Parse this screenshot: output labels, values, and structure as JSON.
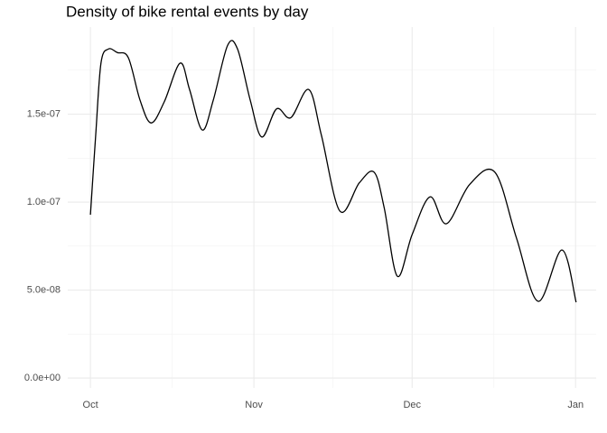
{
  "chart_data": {
    "type": "line",
    "title": "Density of bike rental events by day",
    "x": [
      0,
      1,
      2,
      3.4,
      5.1,
      7.2,
      9.4,
      11.5,
      14,
      17,
      18.8,
      21.2,
      23.3,
      26,
      27.9,
      30.3,
      32.5,
      35.3,
      38,
      41.4,
      43.8,
      47.3,
      51,
      53.8,
      55.7,
      58.2,
      61,
      64.4,
      67.5,
      71.9,
      76.7,
      80.8,
      84.9,
      89.4,
      92.1
    ],
    "series": [
      {
        "color": "#000000",
        "values": [
          9.28e-08,
          1.38e-07,
          1.79e-07,
          1.87e-07,
          1.85e-07,
          1.82e-07,
          1.58e-07,
          1.45e-07,
          1.57e-07,
          1.79e-07,
          1.64e-07,
          1.41e-07,
          1.58e-07,
          1.89e-07,
          1.87e-07,
          1.58e-07,
          1.37e-07,
          1.53e-07,
          1.48e-07,
          1.64e-07,
          1.38e-07,
          9.49e-08,
          1.11e-07,
          1.17e-07,
          9.69e-08,
          5.79e-08,
          8.15e-08,
          1.03e-07,
          8.77e-08,
          1.1e-07,
          1.17e-07,
          7.95e-08,
          4.36e-08,
          7.28e-08,
          4.31e-08
        ]
      }
    ],
    "xlim": [
      -4.3,
      95.9
    ],
    "ylim": [
      -5.6e-09,
      1.995e-07
    ],
    "xticks": [
      {
        "value": 0,
        "label": "Oct"
      },
      {
        "value": 31,
        "label": "Nov"
      },
      {
        "value": 61,
        "label": "Dec"
      },
      {
        "value": 92,
        "label": "Jan"
      }
    ],
    "yticks": [
      {
        "value": 0,
        "label": "0.0e+00"
      },
      {
        "value": 5e-08,
        "label": "5.0e-08"
      },
      {
        "value": 1e-07,
        "label": "1.0e-07"
      },
      {
        "value": 1.5e-07,
        "label": "1.5e-07"
      }
    ],
    "grid": true
  }
}
